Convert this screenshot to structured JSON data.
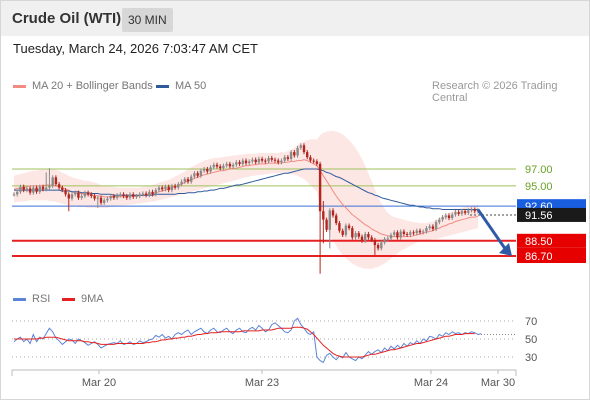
{
  "header": {
    "title": "Crude Oil (WTI)",
    "timeframe": "30 MIN"
  },
  "timestamp": "Tuesday, March 24, 2026 7:03:47 AM CET",
  "copyright": "Research © 2026 Trading Central",
  "colors": {
    "bollinger": "#f28b82",
    "ma50": "#2f5a9b",
    "level_green": "#9fc25a",
    "level_blue": "#3a6fd8",
    "level_red": "#e62020",
    "candle_up": "#8a8a8a",
    "candle_down": "#b3261e",
    "rsi": "#5b84d6",
    "rsi_ma": "#e62020"
  },
  "icons": {
    "target_arrow": "arrow-down-right-icon"
  },
  "chart_data": [
    {
      "type": "candlestick",
      "legend": [
        {
          "name": "MA 20 + Bollinger Bands",
          "color": "#f28b82"
        },
        {
          "name": "MA 50",
          "color": "#2f5a9b"
        }
      ],
      "ylim": [
        84.5,
        101.5
      ],
      "x_ticks": [
        "Mar 20",
        "Mar 23",
        "Mar 24",
        "Mar 30"
      ],
      "close": [
        94.0,
        94.3,
        94.9,
        94.5,
        94.7,
        94.2,
        94.8,
        94.3,
        94.9,
        94.6,
        94.8,
        95.0,
        96.0,
        95.2,
        94.8,
        94.5,
        94.0,
        93.5,
        94.0,
        94.2,
        93.6,
        93.8,
        94.2,
        94.0,
        93.8,
        93.5,
        93.6,
        93.0,
        93.3,
        93.5,
        93.8,
        93.6,
        93.9,
        94.0,
        93.8,
        93.6,
        94.0,
        93.7,
        93.8,
        94.0,
        94.1,
        93.9,
        94.3,
        94.0,
        94.5,
        94.8,
        94.6,
        94.9,
        94.5,
        95.0,
        94.8,
        95.2,
        95.5,
        95.8,
        95.5,
        96.1,
        96.5,
        96.2,
        96.8,
        97.0,
        96.7,
        97.2,
        97.5,
        97.3,
        97.1,
        97.4,
        97.6,
        97.3,
        97.5,
        97.8,
        97.6,
        98.0,
        97.7,
        97.9,
        98.1,
        97.8,
        98.2,
        98.0,
        97.9,
        98.3,
        98.1,
        98.0,
        97.8,
        98.0,
        98.4,
        98.2,
        99.0,
        98.6,
        99.5,
        99.8,
        99.0,
        98.4,
        98.0,
        97.9,
        97.6,
        92.0,
        91.0,
        89.8,
        92.1,
        91.5,
        90.6,
        89.7,
        89.2,
        90.3,
        90.0,
        88.9,
        89.4,
        89.0,
        88.5,
        89.3,
        88.9,
        88.6,
        88.0,
        87.6,
        88.3,
        88.7,
        88.8,
        89.2,
        89.5,
        88.9,
        89.6,
        89.3,
        89.2,
        89.5,
        89.4,
        89.7,
        89.5,
        89.6,
        90.0,
        90.2,
        89.9,
        90.7,
        91.0,
        91.3,
        91.5,
        91.2,
        91.6,
        91.9,
        91.7,
        92.0,
        91.8,
        92.1,
        92.2,
        92.0,
        92.1
      ],
      "bb_upper": [
        96.2,
        96.3,
        96.4,
        96.5,
        96.6,
        96.7,
        96.8,
        96.8,
        96.9,
        96.9,
        97.0,
        97.0,
        97.0,
        96.9,
        96.8,
        96.6,
        96.4,
        96.2,
        96.0,
        95.9,
        95.8,
        95.7,
        95.6,
        95.6,
        95.5,
        95.4,
        95.3,
        95.1,
        95.0,
        95.0,
        94.9,
        94.9,
        94.8,
        94.8,
        94.8,
        94.8,
        94.8,
        94.8,
        94.8,
        94.8,
        94.9,
        94.9,
        95.0,
        95.1,
        95.2,
        95.4,
        95.5,
        95.6,
        95.7,
        95.9,
        96.1,
        96.3,
        96.5,
        96.7,
        97.0,
        97.2,
        97.4,
        97.6,
        97.8,
        98.0,
        98.1,
        98.2,
        98.3,
        98.3,
        98.4,
        98.4,
        98.5,
        98.5,
        98.6,
        98.6,
        98.7,
        98.7,
        98.8,
        98.8,
        98.8,
        98.8,
        98.9,
        98.9,
        98.9,
        98.9,
        98.9,
        98.9,
        98.9,
        99.0,
        99.0,
        99.1,
        99.3,
        99.5,
        99.8,
        100.1,
        100.3,
        100.4,
        100.5,
        100.5,
        100.5,
        101.0,
        101.3,
        101.4,
        101.5,
        101.5,
        101.4,
        101.3,
        101.1,
        100.8,
        100.4,
        100.0,
        99.5,
        98.9,
        98.2,
        97.4,
        96.5,
        95.6,
        94.6,
        93.7,
        92.9,
        92.3,
        91.8,
        91.5,
        91.3,
        91.2,
        91.1,
        91.0,
        90.9,
        90.8,
        90.7,
        90.7,
        90.6,
        90.6,
        90.6,
        90.7,
        90.8,
        91.0,
        91.2,
        91.4,
        91.6,
        91.8,
        92.0,
        92.2,
        92.3,
        92.4,
        92.5,
        92.6,
        92.7,
        92.7,
        92.8
      ],
      "bb_lower": [
        93.0,
        93.1,
        93.1,
        93.2,
        93.2,
        93.3,
        93.3,
        93.3,
        93.3,
        93.3,
        93.3,
        93.2,
        93.2,
        93.1,
        93.0,
        92.9,
        92.8,
        92.7,
        92.6,
        92.6,
        92.5,
        92.5,
        92.5,
        92.4,
        92.4,
        92.4,
        92.4,
        92.4,
        92.4,
        92.4,
        92.5,
        92.5,
        92.6,
        92.6,
        92.7,
        92.7,
        92.8,
        92.8,
        92.9,
        92.9,
        93.0,
        93.0,
        93.1,
        93.1,
        93.2,
        93.3,
        93.4,
        93.5,
        93.6,
        93.7,
        93.8,
        93.9,
        94.0,
        94.1,
        94.2,
        94.3,
        94.4,
        94.5,
        94.6,
        94.7,
        94.8,
        94.9,
        95.0,
        95.1,
        95.2,
        95.3,
        95.4,
        95.5,
        95.6,
        95.7,
        95.8,
        95.9,
        96.0,
        96.1,
        96.2,
        96.2,
        96.3,
        96.3,
        96.4,
        96.4,
        96.5,
        96.5,
        96.5,
        96.5,
        96.5,
        96.5,
        96.4,
        96.3,
        96.2,
        96.0,
        95.8,
        95.5,
        95.1,
        94.7,
        94.3,
        92.5,
        91.2,
        90.0,
        89.2,
        88.5,
        87.9,
        87.3,
        86.8,
        86.4,
        86.1,
        85.8,
        85.6,
        85.4,
        85.3,
        85.2,
        85.2,
        85.2,
        85.3,
        85.4,
        85.6,
        85.8,
        86.1,
        86.4,
        86.7,
        87.0,
        87.3,
        87.5,
        87.7,
        87.9,
        88.1,
        88.3,
        88.4,
        88.5,
        88.6,
        88.6,
        88.7,
        88.7,
        88.8,
        88.9,
        89.0,
        89.1,
        89.2,
        89.3,
        89.4,
        89.5,
        89.6,
        89.7,
        89.8,
        89.9,
        90.0
      ],
      "ma20": [
        94.6,
        94.7,
        94.7,
        94.8,
        94.9,
        95.0,
        95.0,
        95.0,
        95.0,
        95.0,
        95.1,
        95.1,
        95.1,
        95.0,
        94.9,
        94.8,
        94.6,
        94.5,
        94.3,
        94.2,
        94.1,
        94.1,
        94.0,
        94.0,
        93.9,
        93.9,
        93.8,
        93.8,
        93.7,
        93.7,
        93.7,
        93.7,
        93.7,
        93.7,
        93.7,
        93.7,
        93.8,
        93.8,
        93.8,
        93.8,
        93.9,
        93.9,
        94.0,
        94.1,
        94.2,
        94.3,
        94.4,
        94.5,
        94.6,
        94.8,
        94.9,
        95.1,
        95.2,
        95.4,
        95.6,
        95.7,
        95.9,
        96.0,
        96.2,
        96.3,
        96.4,
        96.5,
        96.6,
        96.7,
        96.8,
        96.8,
        96.9,
        97.0,
        97.1,
        97.1,
        97.2,
        97.3,
        97.4,
        97.4,
        97.5,
        97.5,
        97.6,
        97.6,
        97.6,
        97.7,
        97.7,
        97.7,
        97.7,
        97.7,
        97.8,
        97.8,
        97.9,
        97.9,
        98.0,
        98.0,
        98.1,
        98.0,
        97.8,
        97.6,
        97.4,
        96.8,
        96.2,
        95.6,
        95.0,
        94.4,
        93.8,
        93.3,
        92.8,
        92.4,
        92.0,
        91.6,
        91.3,
        91.0,
        90.7,
        90.4,
        90.2,
        89.9,
        89.7,
        89.5,
        89.3,
        89.2,
        89.1,
        89.0,
        89.0,
        89.0,
        89.0,
        89.0,
        89.0,
        89.0,
        89.1,
        89.2,
        89.3,
        89.4,
        89.5,
        89.6,
        89.7,
        89.9,
        90.0,
        90.2,
        90.3,
        90.5,
        90.6,
        90.8,
        90.9,
        91.0,
        91.1,
        91.2,
        91.3,
        91.3,
        91.4
      ],
      "ma50": [
        94.5,
        94.5,
        94.5,
        94.5,
        94.5,
        94.5,
        94.5,
        94.5,
        94.5,
        94.5,
        94.5,
        94.5,
        94.5,
        94.5,
        94.5,
        94.4,
        94.4,
        94.4,
        94.3,
        94.3,
        94.3,
        94.2,
        94.2,
        94.2,
        94.1,
        94.1,
        94.1,
        94.0,
        94.0,
        94.0,
        94.0,
        93.9,
        93.9,
        93.9,
        93.9,
        93.9,
        93.9,
        93.9,
        93.9,
        93.9,
        93.9,
        93.9,
        93.9,
        93.9,
        94.0,
        94.0,
        94.0,
        94.0,
        94.0,
        94.0,
        94.0,
        94.1,
        94.1,
        94.1,
        94.2,
        94.2,
        94.2,
        94.3,
        94.3,
        94.4,
        94.4,
        94.5,
        94.5,
        94.6,
        94.7,
        94.7,
        94.8,
        94.9,
        95.0,
        95.1,
        95.1,
        95.2,
        95.3,
        95.4,
        95.5,
        95.6,
        95.7,
        95.8,
        95.9,
        96.0,
        96.1,
        96.2,
        96.3,
        96.4,
        96.5,
        96.5,
        96.6,
        96.7,
        96.8,
        96.9,
        97.0,
        97.0,
        97.0,
        97.0,
        97.0,
        96.9,
        96.8,
        96.6,
        96.5,
        96.3,
        96.1,
        96.0,
        95.8,
        95.6,
        95.4,
        95.2,
        95.0,
        94.8,
        94.6,
        94.4,
        94.2,
        94.1,
        93.9,
        93.8,
        93.6,
        93.5,
        93.4,
        93.3,
        93.2,
        93.1,
        93.0,
        92.9,
        92.8,
        92.7,
        92.7,
        92.6,
        92.5,
        92.5,
        92.4,
        92.4,
        92.3,
        92.3,
        92.3,
        92.2,
        92.2,
        92.2,
        92.2,
        92.2,
        92.2,
        92.2,
        92.2,
        92.2,
        92.2,
        92.2,
        92.2
      ],
      "levels": [
        {
          "value": 97.0,
          "label": "97.00",
          "color": "#9fc25a",
          "kind": "resistance"
        },
        {
          "value": 95.0,
          "label": "95.00",
          "color": "#9fc25a",
          "kind": "resistance"
        },
        {
          "value": 92.6,
          "label": "92.60",
          "color": "#3a6fd8",
          "kind": "pivot"
        },
        {
          "value": 91.56,
          "label": "91.56",
          "color": "#222222",
          "kind": "last"
        },
        {
          "value": 88.5,
          "label": "88.50",
          "color": "#e62020",
          "kind": "support"
        },
        {
          "value": 86.7,
          "label": "86.70",
          "color": "#e62020",
          "kind": "support"
        }
      ],
      "projection": {
        "from": 92.2,
        "to": 86.7
      }
    },
    {
      "type": "line",
      "legend": [
        {
          "name": "RSI",
          "color": "#5b84d6"
        },
        {
          "name": "9MA",
          "color": "#e62020"
        }
      ],
      "ylim": [
        20,
        75
      ],
      "y_ticks": [
        "70",
        "50",
        "30"
      ],
      "y_tick_values": [
        70,
        50,
        30
      ],
      "rsi": [
        47,
        50,
        52,
        47,
        50,
        45,
        55,
        47,
        52,
        50,
        56,
        62,
        58,
        51,
        48,
        44,
        47,
        50,
        49,
        45,
        50,
        48,
        46,
        43,
        45,
        47,
        44,
        40,
        42,
        44,
        45,
        46,
        45,
        48,
        44,
        45,
        47,
        44,
        45,
        48,
        46,
        47,
        49,
        50,
        54,
        52,
        55,
        51,
        53,
        50,
        55,
        57,
        55,
        58,
        60,
        55,
        58,
        60,
        62,
        58,
        56,
        60,
        62,
        58,
        57,
        60,
        62,
        58,
        56,
        60,
        62,
        58,
        57,
        61,
        63,
        60,
        65,
        62,
        58,
        60,
        66,
        68,
        65,
        62,
        58,
        57,
        60,
        70,
        73,
        66,
        62,
        57,
        55,
        58,
        30,
        26,
        24,
        32,
        34,
        30,
        27,
        31,
        29,
        35,
        30,
        28,
        26,
        30,
        28,
        32,
        36,
        33,
        36,
        38,
        35,
        40,
        37,
        42,
        39,
        43,
        40,
        45,
        42,
        46,
        44,
        48,
        45,
        50,
        48,
        53,
        52,
        50,
        55,
        53,
        57,
        55,
        58,
        56,
        57,
        55,
        57,
        56,
        58,
        57,
        55,
        56
      ],
      "rsi_ma": [
        50,
        50,
        50,
        50,
        50,
        50,
        50,
        50,
        51,
        51,
        52,
        52,
        52,
        52,
        51,
        50,
        49,
        48,
        48,
        48,
        48,
        48,
        47,
        47,
        46,
        46,
        45,
        44,
        44,
        44,
        44,
        44,
        45,
        45,
        45,
        45,
        45,
        45,
        45,
        45,
        45,
        46,
        46,
        47,
        47,
        48,
        49,
        49,
        50,
        50,
        51,
        51,
        52,
        52,
        53,
        53,
        54,
        55,
        55,
        56,
        56,
        57,
        57,
        57,
        58,
        58,
        58,
        58,
        58,
        58,
        58,
        59,
        59,
        59,
        59,
        59,
        59,
        60,
        60,
        60,
        60,
        61,
        62,
        62,
        62,
        62,
        62,
        63,
        63,
        63,
        62,
        61,
        58,
        55,
        51,
        47,
        43,
        40,
        37,
        34,
        32,
        31,
        30,
        30,
        30,
        30,
        30,
        30,
        30,
        31,
        32,
        33,
        33,
        34,
        35,
        36,
        37,
        38,
        38,
        39,
        40,
        41,
        42,
        43,
        44,
        45,
        45,
        46,
        47,
        48,
        49,
        50,
        51,
        52,
        53,
        53,
        54,
        55,
        55,
        55,
        56,
        56,
        56,
        56
      ],
      "x_ticks": [
        "Mar 20",
        "Mar 23",
        "Mar 24",
        "Mar 30"
      ]
    }
  ]
}
